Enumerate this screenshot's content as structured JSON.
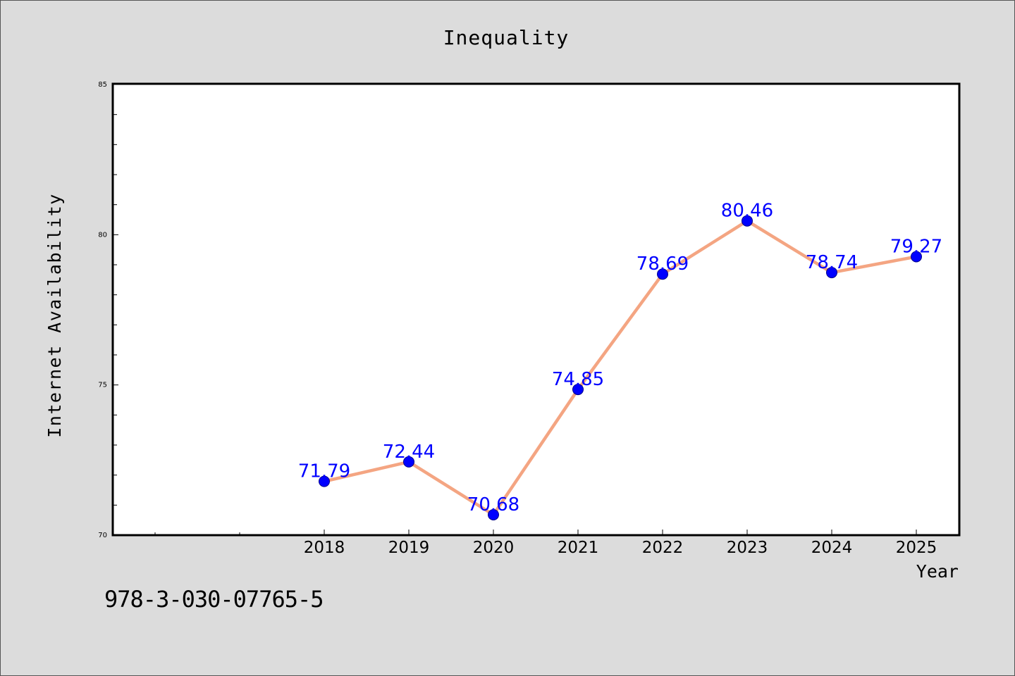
{
  "chart_data": {
    "type": "line",
    "title": "Inequality",
    "xlabel": "Year",
    "ylabel": "Internet Availability",
    "x": [
      "2018",
      "2019",
      "2020",
      "2021",
      "2022",
      "2023",
      "2024",
      "2025"
    ],
    "series": [
      {
        "values": [
          71.79,
          72.44,
          70.68,
          74.85,
          78.69,
          80.46,
          78.74,
          79.27
        ],
        "labels": [
          "71.79",
          "72.44",
          "70.68",
          "74.85",
          "78.69",
          "80.46",
          "78.74",
          "79.27"
        ]
      }
    ],
    "ylim": [
      70,
      85
    ],
    "yticks": [
      "70",
      "75",
      "80",
      "85"
    ],
    "grid": false,
    "legend": "none",
    "colors": {
      "line": "#f4a582",
      "marker": "#0000ff",
      "marker_edge": "#00008b",
      "data_label": "#0000ff",
      "background": "#dcdcdc",
      "plot_background": "#ffffff"
    }
  },
  "footer": {
    "isbn": "978-3-030-07765-5"
  }
}
